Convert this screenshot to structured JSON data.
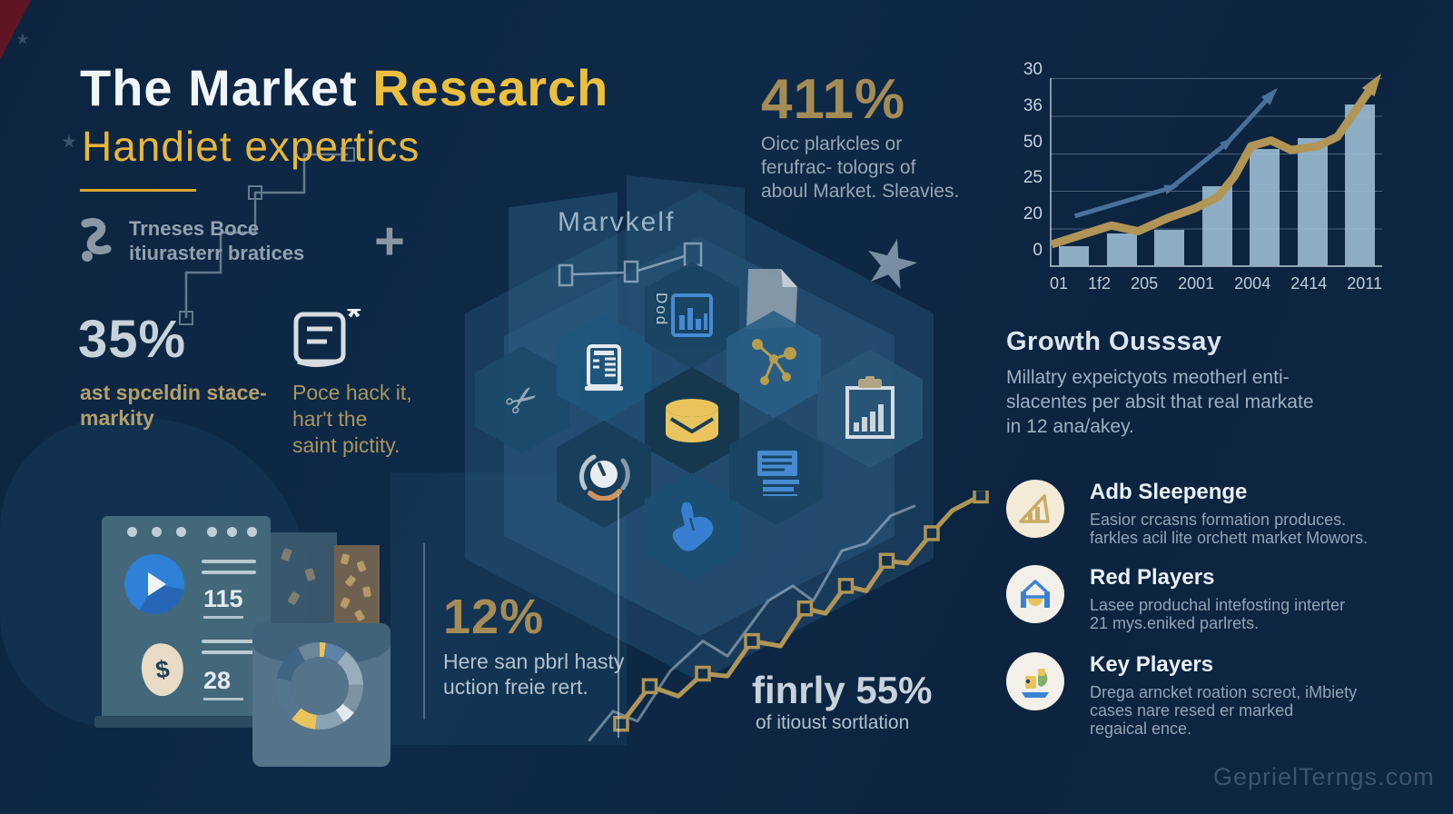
{
  "header": {
    "title_white": "The Market",
    "title_yellow": "Research",
    "subtitle": "Handiet expertics",
    "tagline_line1": "Trneses Boce",
    "tagline_line2": "itiurasterr bratices",
    "plus_glyph": "+"
  },
  "stats": {
    "s411": {
      "value": "411%",
      "lines": [
        "Oicc plarkcles or",
        "ferufrac- tologrs of",
        "aboul Market. Sleavies."
      ]
    },
    "s35": {
      "value": "35%",
      "lines": [
        "ast spceldin stace-",
        "markity"
      ]
    },
    "note": {
      "lines": [
        "Poce hack it,",
        "har't the",
        "saint pictity."
      ]
    },
    "s12": {
      "value": "12%",
      "lines": [
        "Here san pbrl hasty",
        "uction freie rert."
      ]
    },
    "s55": {
      "text": "finrly 55%",
      "caption": "of itioust sortlation"
    }
  },
  "center": {
    "label": "Marvkelf",
    "hex_icon_names": [
      "scissors-icon",
      "server-icon",
      "bar-doc-icon",
      "file-icon",
      "network-icon",
      "database-icon",
      "gauge-icon",
      "hand-icon",
      "text-doc-icon",
      "clipboard-chart-icon"
    ],
    "dod_label": "Dod"
  },
  "growth": {
    "heading": "Growth Ousssay",
    "lines": [
      "Millatry expeictyots  meotherl enti-",
      "slacentes per absit that real markate",
      "in 12 ana/akey."
    ]
  },
  "players": [
    {
      "title": "Adb Sleepenge",
      "icon": "growth-triangle-icon",
      "lines": [
        "Easior crcasns formation produces.",
        "farkles acil lite orchett market Mowors."
      ]
    },
    {
      "title": "Red Players",
      "icon": "house-icon",
      "lines": [
        "Lasee produchal intefosting interter",
        "21 mys.eniked parlrets."
      ]
    },
    {
      "title": "Key Players",
      "icon": "figures-icon",
      "lines": [
        "Drega arncket roation screot, iMbiety",
        "cases nare resed er marked",
        "regaical ence."
      ]
    }
  ],
  "dashboard": {
    "metric1": "115",
    "metric2": "28",
    "currency": "$"
  },
  "watermark": "GeprielTerngs.com",
  "colors": {
    "accent_yellow": "#ecbf3f",
    "muted_gold": "#a58c55",
    "line_gold": "#b09556",
    "silver": "#c8d2da",
    "body_gray": "#9eadbb",
    "bar_fill": "#9fc0d6",
    "blue_line": "#4a7199",
    "play_blue": "#2f80d8",
    "donut_yellow": "#e9c45c"
  },
  "chart_data": [
    {
      "name": "growth-bar-line-chart",
      "type": "bar",
      "categories": [
        "01",
        "1f2",
        "205",
        "2001",
        "2004",
        "2414",
        "2011"
      ],
      "y_tick_labels": [
        "30",
        "36",
        "50",
        "25",
        "20",
        "0"
      ],
      "values": [
        10,
        17,
        19,
        42,
        62,
        68,
        86
      ],
      "ylim": [
        0,
        100
      ],
      "grid": true,
      "legend": "none",
      "series": [
        {
          "name": "gold-trend",
          "type": "line",
          "color": "#b09556",
          "width": 9,
          "points_pct": [
            [
              0,
              88
            ],
            [
              18,
              78
            ],
            [
              26,
              81
            ],
            [
              35,
              74
            ],
            [
              43,
              69
            ],
            [
              50,
              63
            ],
            [
              55,
              52
            ],
            [
              60,
              36
            ],
            [
              66,
              33
            ],
            [
              72,
              38
            ],
            [
              80,
              36
            ],
            [
              86,
              31
            ],
            [
              97,
              3
            ]
          ]
        },
        {
          "name": "blue-trend",
          "type": "line",
          "color": "#4a7199",
          "width": 5,
          "points_pct": [
            [
              7,
              73
            ],
            [
              36,
              58
            ],
            [
              53,
              34
            ],
            [
              66,
              9
            ]
          ]
        }
      ]
    },
    {
      "name": "donut-chart",
      "type": "pie",
      "segments": [
        {
          "color": "#e9c45c",
          "deg": 38
        },
        {
          "color": "#5d83a8",
          "deg": 30
        },
        {
          "color": "#97adbd",
          "deg": 50
        },
        {
          "color": "#7b93a4",
          "deg": 40
        },
        {
          "color": "#e3e8ec",
          "deg": 18
        },
        {
          "color": "#8aa3b5",
          "deg": 40
        },
        {
          "color": "#e9c45c",
          "deg": 34
        },
        {
          "color": "#54778f",
          "deg": 60
        },
        {
          "color": "#3f6584",
          "deg": 50
        }
      ]
    },
    {
      "name": "step-line-chart",
      "type": "line",
      "color": "#b09556",
      "points_pct": [
        [
          8,
          93
        ],
        [
          15,
          78
        ],
        [
          22,
          82
        ],
        [
          28,
          73
        ],
        [
          34,
          74
        ],
        [
          40,
          60
        ],
        [
          47,
          62
        ],
        [
          53,
          47
        ],
        [
          58,
          49
        ],
        [
          63,
          38
        ],
        [
          68,
          40
        ],
        [
          73,
          28
        ],
        [
          78,
          29
        ],
        [
          84,
          17
        ],
        [
          89,
          8
        ],
        [
          96,
          2
        ]
      ],
      "marker_idx": [
        0,
        1,
        3,
        5,
        7,
        9,
        11,
        13,
        15
      ],
      "ghost_points_pct": [
        [
          0,
          100
        ],
        [
          6,
          88
        ],
        [
          12,
          92
        ],
        [
          20,
          72
        ],
        [
          28,
          60
        ],
        [
          34,
          66
        ],
        [
          44,
          44
        ],
        [
          50,
          38
        ],
        [
          55,
          44
        ],
        [
          62,
          24
        ],
        [
          68,
          21
        ],
        [
          74,
          10
        ],
        [
          80,
          6
        ]
      ]
    }
  ]
}
